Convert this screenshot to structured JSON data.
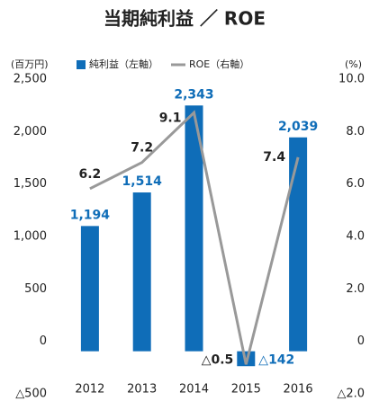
{
  "chart_data": {
    "type": "bar_line",
    "title": "当期純利益 ／ ROE",
    "y_label": "(百万円)",
    "y2_label": "(%)",
    "categories": [
      "2012",
      "2013",
      "2014",
      "2015",
      "2016"
    ],
    "series": [
      {
        "name": "純利益（左軸）",
        "type": "bar",
        "color": "#0f6db8",
        "values": [
          1194,
          1514,
          2343,
          -142,
          2039
        ],
        "value_labels": [
          "1,194",
          "1,514",
          "2,343",
          "△142",
          "2,039"
        ]
      },
      {
        "name": "ROE（右軸）",
        "type": "line",
        "axis": "y2",
        "color": "#999999",
        "values": [
          6.2,
          7.2,
          9.1,
          -0.5,
          7.4
        ],
        "value_labels": [
          "6.2",
          "7.2",
          "9.1",
          "△0.5",
          "7.4"
        ]
      }
    ],
    "ylim": [
      -500,
      2500
    ],
    "yticks": [
      {
        "value": 2500,
        "label": "2,500"
      },
      {
        "value": 2000,
        "label": "2,000"
      },
      {
        "value": 1500,
        "label": "1,500"
      },
      {
        "value": 1000,
        "label": "1,000"
      },
      500,
      0,
      {
        "value": -500,
        "label": "△500"
      }
    ],
    "y2lim": [
      -2,
      10
    ],
    "y2ticks": [
      {
        "value": 10,
        "label": "10.0"
      },
      {
        "value": 8,
        "label": "8.0"
      },
      {
        "value": 6,
        "label": "6.0"
      },
      {
        "value": 4,
        "label": "4.0"
      },
      {
        "value": 2,
        "label": "2.0"
      },
      0,
      {
        "value": -2,
        "label": "△2.0"
      }
    ],
    "legend": "top"
  }
}
